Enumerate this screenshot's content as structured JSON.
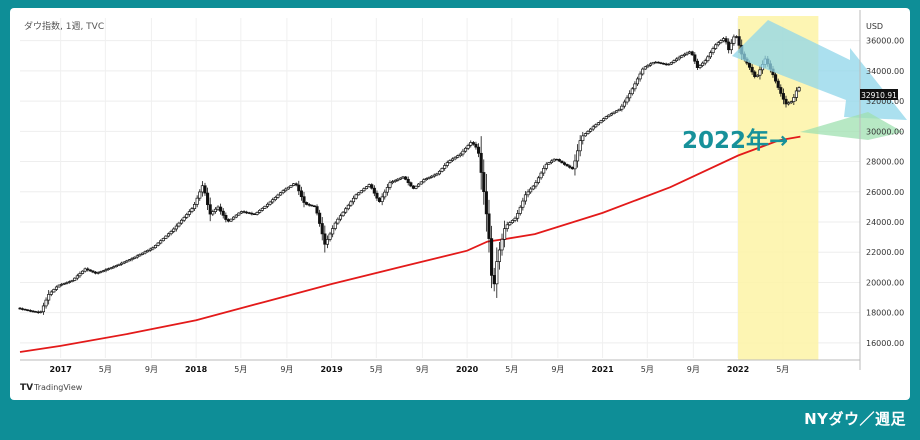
{
  "chart_data": {
    "type": "candlestick",
    "title": "ダウ指数, 1週, TVC",
    "currency": "USD",
    "last_price_label": "32910.91",
    "ylim": [
      15000,
      37500
    ],
    "y_ticks": [
      "16000.00",
      "18000.00",
      "20000.00",
      "22000.00",
      "24000.00",
      "26000.00",
      "28000.00",
      "30000.00",
      "32000.00",
      "34000.00",
      "36000.00"
    ],
    "x_ticks": [
      {
        "label": "2017",
        "t": 2017.0,
        "year": true
      },
      {
        "label": "5月",
        "t": 2017.33,
        "year": false
      },
      {
        "label": "9月",
        "t": 2017.67,
        "year": false
      },
      {
        "label": "2018",
        "t": 2018.0,
        "year": true
      },
      {
        "label": "5月",
        "t": 2018.33,
        "year": false
      },
      {
        "label": "9月",
        "t": 2018.67,
        "year": false
      },
      {
        "label": "2019",
        "t": 2019.0,
        "year": true
      },
      {
        "label": "5月",
        "t": 2019.33,
        "year": false
      },
      {
        "label": "9月",
        "t": 2019.67,
        "year": false
      },
      {
        "label": "2020",
        "t": 2020.0,
        "year": true
      },
      {
        "label": "5月",
        "t": 2020.33,
        "year": false
      },
      {
        "label": "9月",
        "t": 2020.67,
        "year": false
      },
      {
        "label": "2021",
        "t": 2021.0,
        "year": true
      },
      {
        "label": "5月",
        "t": 2021.33,
        "year": false
      },
      {
        "label": "9月",
        "t": 2021.67,
        "year": false
      },
      {
        "label": "2022",
        "t": 2022.0,
        "year": true
      },
      {
        "label": "5月",
        "t": 2022.33,
        "year": false
      }
    ],
    "price_path": [
      [
        2016.7,
        18300
      ],
      [
        2016.8,
        18100
      ],
      [
        2016.87,
        18000
      ],
      [
        2016.93,
        19200
      ],
      [
        2017.0,
        19800
      ],
      [
        2017.1,
        20100
      ],
      [
        2017.2,
        20900
      ],
      [
        2017.28,
        20600
      ],
      [
        2017.4,
        21000
      ],
      [
        2017.55,
        21600
      ],
      [
        2017.7,
        22300
      ],
      [
        2017.85,
        23500
      ],
      [
        2018.0,
        25000
      ],
      [
        2018.07,
        26500
      ],
      [
        2018.12,
        24500
      ],
      [
        2018.18,
        25000
      ],
      [
        2018.25,
        24000
      ],
      [
        2018.35,
        24700
      ],
      [
        2018.45,
        24500
      ],
      [
        2018.55,
        25200
      ],
      [
        2018.65,
        26000
      ],
      [
        2018.75,
        26600
      ],
      [
        2018.82,
        25200
      ],
      [
        2018.9,
        25000
      ],
      [
        2018.97,
        22500
      ],
      [
        2019.05,
        24000
      ],
      [
        2019.2,
        25800
      ],
      [
        2019.3,
        26500
      ],
      [
        2019.37,
        25300
      ],
      [
        2019.45,
        26600
      ],
      [
        2019.55,
        27000
      ],
      [
        2019.62,
        26200
      ],
      [
        2019.7,
        26800
      ],
      [
        2019.8,
        27200
      ],
      [
        2019.88,
        28000
      ],
      [
        2019.97,
        28500
      ],
      [
        2020.05,
        29300
      ],
      [
        2020.1,
        28800
      ],
      [
        2020.15,
        25500
      ],
      [
        2020.18,
        23000
      ],
      [
        2020.21,
        19200
      ],
      [
        2020.24,
        21500
      ],
      [
        2020.3,
        23700
      ],
      [
        2020.38,
        24300
      ],
      [
        2020.45,
        25800
      ],
      [
        2020.52,
        26500
      ],
      [
        2020.6,
        27800
      ],
      [
        2020.67,
        28200
      ],
      [
        2020.74,
        27800
      ],
      [
        2020.8,
        27500
      ],
      [
        2020.86,
        29600
      ],
      [
        2020.95,
        30300
      ],
      [
        2021.05,
        31000
      ],
      [
        2021.15,
        31500
      ],
      [
        2021.22,
        32500
      ],
      [
        2021.32,
        34200
      ],
      [
        2021.4,
        34600
      ],
      [
        2021.5,
        34400
      ],
      [
        2021.6,
        35000
      ],
      [
        2021.67,
        35300
      ],
      [
        2021.72,
        34200
      ],
      [
        2021.78,
        34700
      ],
      [
        2021.85,
        35700
      ],
      [
        2021.92,
        36200
      ],
      [
        2021.95,
        35400
      ],
      [
        2022.0,
        36500
      ],
      [
        2022.05,
        35000
      ],
      [
        2022.1,
        34300
      ],
      [
        2022.15,
        33500
      ],
      [
        2022.22,
        34800
      ],
      [
        2022.27,
        33900
      ],
      [
        2022.32,
        32800
      ],
      [
        2022.37,
        31800
      ],
      [
        2022.42,
        32000
      ],
      [
        2022.46,
        32900
      ]
    ],
    "moving_average": [
      [
        2016.7,
        15400
      ],
      [
        2017.0,
        15800
      ],
      [
        2017.5,
        16600
      ],
      [
        2018.0,
        17500
      ],
      [
        2018.5,
        18700
      ],
      [
        2019.0,
        19900
      ],
      [
        2019.5,
        21000
      ],
      [
        2020.0,
        22100
      ],
      [
        2020.15,
        22700
      ],
      [
        2020.3,
        22900
      ],
      [
        2020.5,
        23200
      ],
      [
        2021.0,
        24600
      ],
      [
        2021.5,
        26300
      ],
      [
        2022.0,
        28400
      ],
      [
        2022.3,
        29400
      ],
      [
        2022.46,
        29650
      ]
    ],
    "highlight_region": {
      "from": 2022.0,
      "to": 2022.46
    },
    "annotation": "2022年→",
    "brand": "TradingView"
  },
  "footer": {
    "label": "NYダウ／週足"
  }
}
